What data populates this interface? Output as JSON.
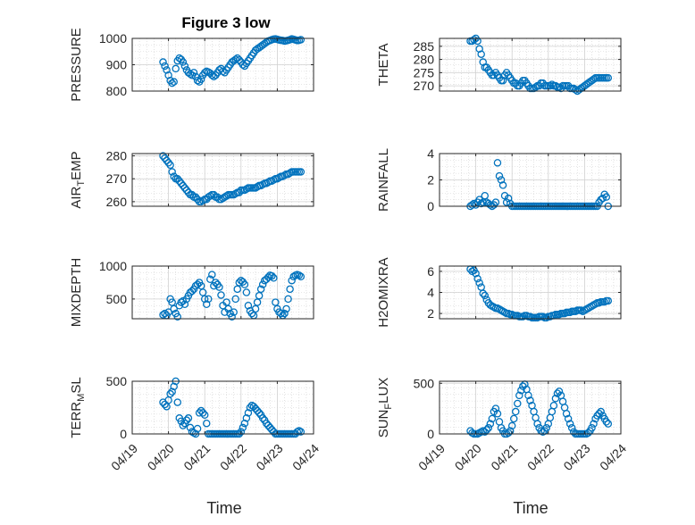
{
  "figure": {
    "title": "Figure 3 low",
    "x_label": "Time",
    "x_tick_labels": [
      "04/19",
      "04/20",
      "04/21",
      "04/22",
      "04/23",
      "04/24"
    ],
    "marker_color": "#0072BD",
    "grid_color": "#d0d0d0"
  },
  "chart_data": [
    {
      "type": "scatter",
      "ylabel": "PRESSURE",
      "ylim": [
        800,
        1000
      ],
      "yticks": [
        800,
        900,
        1000
      ],
      "x_range": [
        0,
        5
      ],
      "grid": true,
      "x": [
        0.85,
        0.9,
        0.95,
        1.0,
        1.05,
        1.1,
        1.15,
        1.2,
        1.25,
        1.3,
        1.35,
        1.4,
        1.45,
        1.5,
        1.55,
        1.6,
        1.65,
        1.7,
        1.75,
        1.8,
        1.85,
        1.9,
        1.95,
        2.0,
        2.05,
        2.1,
        2.15,
        2.2,
        2.25,
        2.3,
        2.35,
        2.4,
        2.45,
        2.5,
        2.55,
        2.6,
        2.65,
        2.7,
        2.75,
        2.8,
        2.85,
        2.9,
        2.95,
        3.0,
        3.05,
        3.1,
        3.15,
        3.2,
        3.25,
        3.3,
        3.35,
        3.4,
        3.45,
        3.5,
        3.55,
        3.6,
        3.65,
        3.7,
        3.75,
        3.8,
        3.85,
        3.9,
        3.95,
        4.0,
        4.05,
        4.1,
        4.15,
        4.2,
        4.25,
        4.3,
        4.35,
        4.4,
        4.45,
        4.5,
        4.55,
        4.6,
        4.65
      ],
      "y": [
        910,
        895,
        880,
        860,
        840,
        830,
        835,
        885,
        915,
        925,
        920,
        910,
        895,
        880,
        870,
        865,
        860,
        870,
        855,
        840,
        835,
        845,
        860,
        870,
        875,
        872,
        868,
        860,
        855,
        860,
        870,
        880,
        885,
        875,
        870,
        880,
        890,
        900,
        910,
        915,
        920,
        925,
        918,
        910,
        900,
        895,
        905,
        915,
        925,
        935,
        945,
        955,
        960,
        965,
        970,
        975,
        980,
        985,
        990,
        992,
        995,
        997,
        998,
        996,
        994,
        993,
        992,
        990,
        991,
        993,
        995,
        998,
        996,
        994,
        992,
        993,
        995
      ]
    },
    {
      "type": "scatter",
      "ylabel": "THETA",
      "ylim": [
        268,
        288
      ],
      "yticks": [
        270,
        275,
        280,
        285
      ],
      "x_range": [
        0,
        5
      ],
      "grid": true,
      "x": [
        0.85,
        0.9,
        0.95,
        1.0,
        1.05,
        1.1,
        1.15,
        1.2,
        1.25,
        1.3,
        1.35,
        1.4,
        1.45,
        1.5,
        1.55,
        1.6,
        1.65,
        1.7,
        1.75,
        1.8,
        1.85,
        1.9,
        1.95,
        2.0,
        2.05,
        2.1,
        2.15,
        2.2,
        2.25,
        2.3,
        2.35,
        2.4,
        2.45,
        2.5,
        2.55,
        2.6,
        2.65,
        2.7,
        2.75,
        2.8,
        2.85,
        2.9,
        2.95,
        3.0,
        3.05,
        3.1,
        3.15,
        3.2,
        3.25,
        3.3,
        3.35,
        3.4,
        3.45,
        3.5,
        3.55,
        3.6,
        3.65,
        3.7,
        3.75,
        3.8,
        3.85,
        3.9,
        3.95,
        4.0,
        4.05,
        4.1,
        4.15,
        4.2,
        4.25,
        4.3,
        4.35,
        4.4,
        4.45,
        4.5,
        4.55,
        4.6,
        4.65
      ],
      "y": [
        287,
        287,
        287.5,
        288,
        287,
        284,
        282,
        279,
        277,
        277,
        276,
        275,
        274,
        274,
        275,
        274,
        273,
        272,
        272,
        274,
        275,
        274,
        273,
        272,
        271,
        271,
        270,
        270,
        271,
        272,
        272,
        271,
        270,
        269,
        269,
        269,
        269.5,
        270,
        270,
        271,
        271,
        270,
        270,
        270,
        270,
        270.5,
        270,
        270,
        269.5,
        269.5,
        269,
        270,
        270,
        270,
        270,
        269,
        269,
        269,
        268.5,
        268,
        268.5,
        269,
        269.5,
        270,
        270.5,
        271,
        271.5,
        272,
        272.5,
        273,
        273,
        273,
        273,
        273,
        273,
        273,
        273
      ]
    },
    {
      "type": "scatter",
      "ylabel": "AIR_TEMP",
      "ylim": [
        258,
        281
      ],
      "yticks": [
        260,
        270,
        280
      ],
      "x_range": [
        0,
        5
      ],
      "grid": true,
      "x": [
        0.85,
        0.9,
        0.95,
        1.0,
        1.05,
        1.1,
        1.15,
        1.2,
        1.25,
        1.3,
        1.35,
        1.4,
        1.45,
        1.5,
        1.55,
        1.6,
        1.65,
        1.7,
        1.75,
        1.8,
        1.85,
        1.9,
        1.95,
        2.0,
        2.05,
        2.1,
        2.15,
        2.2,
        2.25,
        2.3,
        2.35,
        2.4,
        2.45,
        2.5,
        2.55,
        2.6,
        2.65,
        2.7,
        2.75,
        2.8,
        2.85,
        2.9,
        2.95,
        3.0,
        3.05,
        3.1,
        3.15,
        3.2,
        3.25,
        3.3,
        3.35,
        3.4,
        3.45,
        3.5,
        3.55,
        3.6,
        3.65,
        3.7,
        3.75,
        3.8,
        3.85,
        3.9,
        3.95,
        4.0,
        4.05,
        4.1,
        4.15,
        4.2,
        4.25,
        4.3,
        4.35,
        4.4,
        4.45,
        4.5,
        4.55,
        4.6,
        4.65
      ],
      "y": [
        280,
        279,
        278,
        277,
        276,
        273,
        271,
        270,
        270,
        269,
        268,
        267,
        266,
        265,
        264,
        263,
        263,
        262,
        262,
        261,
        260,
        260,
        260.5,
        261,
        261,
        262,
        262.5,
        263,
        263,
        262,
        262,
        261,
        261,
        261.5,
        262,
        262.5,
        263,
        263,
        263,
        263,
        263.5,
        264,
        264,
        265,
        265,
        265,
        265.5,
        266,
        266,
        266,
        266,
        266,
        266.5,
        267,
        267,
        267.5,
        268,
        268,
        268.5,
        269,
        269,
        269.5,
        270,
        270,
        270.5,
        271,
        271,
        271.5,
        272,
        272,
        272.5,
        273,
        273,
        273,
        273,
        273,
        273
      ]
    },
    {
      "type": "scatter",
      "ylabel": "RAINFALL",
      "ylim": [
        0,
        4
      ],
      "yticks": [
        0,
        2,
        4
      ],
      "x_range": [
        0,
        5
      ],
      "grid": true,
      "x": [
        0.85,
        0.9,
        0.95,
        1.0,
        1.05,
        1.1,
        1.15,
        1.2,
        1.25,
        1.3,
        1.35,
        1.4,
        1.45,
        1.5,
        1.55,
        1.6,
        1.65,
        1.7,
        1.75,
        1.8,
        1.85,
        1.9,
        1.95,
        2.0,
        2.05,
        2.1,
        2.15,
        2.2,
        2.25,
        2.3,
        2.35,
        2.4,
        2.45,
        2.5,
        2.55,
        2.6,
        2.65,
        2.7,
        2.75,
        2.8,
        2.85,
        2.9,
        2.95,
        3.0,
        3.05,
        3.1,
        3.15,
        3.2,
        3.25,
        3.3,
        3.35,
        3.4,
        3.45,
        3.5,
        3.55,
        3.6,
        3.65,
        3.7,
        3.75,
        3.8,
        3.85,
        3.9,
        3.95,
        4.0,
        4.05,
        4.1,
        4.15,
        4.2,
        4.25,
        4.3,
        4.35,
        4.4,
        4.45,
        4.5,
        4.55,
        4.6,
        4.65
      ],
      "y": [
        0,
        0.1,
        0.2,
        0.1,
        0.3,
        0.5,
        0.2,
        0.3,
        0.8,
        0.3,
        0.2,
        0.1,
        0,
        0.1,
        0.3,
        3.3,
        2.3,
        2,
        1.6,
        0.8,
        0.3,
        0.6,
        0.2,
        0,
        0,
        0,
        0,
        0,
        0,
        0,
        0,
        0,
        0,
        0,
        0,
        0,
        0,
        0,
        0,
        0,
        0,
        0,
        0,
        0,
        0,
        0,
        0,
        0,
        0,
        0,
        0,
        0,
        0,
        0,
        0,
        0,
        0,
        0,
        0,
        0,
        0,
        0,
        0,
        0,
        0,
        0,
        0,
        0,
        0,
        0,
        0,
        0.3,
        0.5,
        0.6,
        0.9,
        0.7,
        0
      ]
    },
    {
      "type": "scatter",
      "ylabel": "MIXDEPTH",
      "ylim": [
        200,
        1000
      ],
      "yticks": [
        500,
        1000
      ],
      "x_range": [
        0,
        5
      ],
      "grid": true,
      "x": [
        0.85,
        0.9,
        0.95,
        1.0,
        1.05,
        1.1,
        1.15,
        1.2,
        1.25,
        1.3,
        1.35,
        1.4,
        1.45,
        1.5,
        1.55,
        1.6,
        1.65,
        1.7,
        1.75,
        1.8,
        1.85,
        1.9,
        1.95,
        2.0,
        2.05,
        2.1,
        2.15,
        2.2,
        2.25,
        2.3,
        2.35,
        2.4,
        2.45,
        2.5,
        2.55,
        2.6,
        2.65,
        2.7,
        2.75,
        2.8,
        2.85,
        2.9,
        2.95,
        3.0,
        3.05,
        3.1,
        3.15,
        3.2,
        3.25,
        3.3,
        3.35,
        3.4,
        3.45,
        3.5,
        3.55,
        3.6,
        3.65,
        3.7,
        3.75,
        3.8,
        3.85,
        3.9,
        3.95,
        4.0,
        4.05,
        4.1,
        4.15,
        4.2,
        4.25,
        4.3,
        4.35,
        4.4,
        4.45,
        4.5,
        4.55,
        4.6,
        4.65
      ],
      "y": [
        260,
        280,
        250,
        300,
        500,
        450,
        350,
        280,
        230,
        400,
        450,
        470,
        420,
        500,
        550,
        600,
        620,
        650,
        700,
        720,
        750,
        700,
        600,
        500,
        420,
        500,
        800,
        870,
        700,
        750,
        720,
        680,
        560,
        400,
        300,
        450,
        350,
        280,
        230,
        300,
        500,
        650,
        750,
        780,
        760,
        720,
        600,
        400,
        320,
        280,
        250,
        350,
        450,
        550,
        650,
        720,
        780,
        800,
        830,
        860,
        850,
        820,
        450,
        350,
        300,
        280,
        250,
        280,
        350,
        500,
        650,
        780,
        840,
        860,
        870,
        860,
        840
      ]
    },
    {
      "type": "scatter",
      "ylabel": "H2OMIXRA",
      "ylim": [
        1.5,
        6.5
      ],
      "yticks": [
        2,
        4,
        6
      ],
      "x_range": [
        0,
        5
      ],
      "grid": true,
      "x": [
        0.85,
        0.9,
        0.95,
        1.0,
        1.05,
        1.1,
        1.15,
        1.2,
        1.25,
        1.3,
        1.35,
        1.4,
        1.45,
        1.5,
        1.55,
        1.6,
        1.65,
        1.7,
        1.75,
        1.8,
        1.85,
        1.9,
        1.95,
        2.0,
        2.05,
        2.1,
        2.15,
        2.2,
        2.25,
        2.3,
        2.35,
        2.4,
        2.45,
        2.5,
        2.55,
        2.6,
        2.65,
        2.7,
        2.75,
        2.8,
        2.85,
        2.9,
        2.95,
        3.0,
        3.05,
        3.1,
        3.15,
        3.2,
        3.25,
        3.3,
        3.35,
        3.4,
        3.45,
        3.5,
        3.55,
        3.6,
        3.65,
        3.7,
        3.75,
        3.8,
        3.85,
        3.9,
        3.95,
        4.0,
        4.05,
        4.1,
        4.15,
        4.2,
        4.25,
        4.3,
        4.35,
        4.4,
        4.45,
        4.5,
        4.55,
        4.6,
        4.65
      ],
      "y": [
        6.2,
        6.0,
        6.1,
        5.8,
        5.3,
        4.9,
        4.5,
        3.9,
        3.7,
        3.3,
        3.0,
        2.8,
        2.7,
        2.6,
        2.5,
        2.5,
        2.4,
        2.3,
        2.2,
        2.1,
        2.0,
        2.0,
        1.9,
        1.9,
        1.8,
        1.8,
        1.8,
        1.7,
        1.7,
        1.7,
        1.8,
        1.8,
        1.7,
        1.7,
        1.6,
        1.6,
        1.6,
        1.6,
        1.7,
        1.7,
        1.7,
        1.6,
        1.6,
        1.7,
        1.7,
        1.8,
        1.8,
        1.9,
        1.9,
        1.9,
        2.0,
        2.0,
        2.0,
        2.1,
        2.1,
        2.1,
        2.2,
        2.2,
        2.2,
        2.3,
        2.3,
        2.3,
        2.2,
        2.3,
        2.4,
        2.5,
        2.6,
        2.7,
        2.8,
        2.9,
        3.0,
        3.0,
        3.1,
        3.1,
        3.1,
        3.2,
        3.2
      ]
    },
    {
      "type": "scatter",
      "ylabel": "TERR_MSL",
      "ylim": [
        0,
        500
      ],
      "yticks": [
        0,
        500
      ],
      "x_range": [
        0,
        5
      ],
      "grid": true,
      "x": [
        0.85,
        0.9,
        0.95,
        1.0,
        1.05,
        1.1,
        1.15,
        1.2,
        1.25,
        1.3,
        1.35,
        1.4,
        1.45,
        1.5,
        1.55,
        1.6,
        1.65,
        1.7,
        1.75,
        1.8,
        1.85,
        1.9,
        1.95,
        2.0,
        2.05,
        2.1,
        2.15,
        2.2,
        2.25,
        2.3,
        2.35,
        2.4,
        2.45,
        2.5,
        2.55,
        2.6,
        2.65,
        2.7,
        2.75,
        2.8,
        2.85,
        2.9,
        2.95,
        3.0,
        3.05,
        3.1,
        3.15,
        3.2,
        3.25,
        3.3,
        3.35,
        3.4,
        3.45,
        3.5,
        3.55,
        3.6,
        3.65,
        3.7,
        3.75,
        3.8,
        3.85,
        3.9,
        3.95,
        4.0,
        4.05,
        4.1,
        4.15,
        4.2,
        4.25,
        4.3,
        4.35,
        4.4,
        4.45,
        4.5,
        4.55,
        4.6,
        4.65
      ],
      "y": [
        300,
        280,
        260,
        320,
        380,
        400,
        450,
        500,
        300,
        150,
        120,
        80,
        100,
        130,
        150,
        60,
        20,
        10,
        0,
        50,
        200,
        220,
        200,
        180,
        100,
        0,
        0,
        0,
        0,
        0,
        0,
        0,
        0,
        0,
        0,
        0,
        0,
        0,
        0,
        0,
        0,
        0,
        0,
        20,
        60,
        100,
        150,
        200,
        250,
        270,
        260,
        240,
        220,
        200,
        180,
        150,
        130,
        100,
        80,
        60,
        40,
        20,
        0,
        0,
        0,
        0,
        0,
        0,
        0,
        0,
        0,
        0,
        0,
        0,
        20,
        30,
        20
      ]
    },
    {
      "type": "scatter",
      "ylabel": "SUN_FLUX",
      "ylim": [
        0,
        520
      ],
      "yticks": [
        0,
        500
      ],
      "x_range": [
        0,
        5
      ],
      "grid": true,
      "x": [
        0.85,
        0.9,
        0.95,
        1.0,
        1.05,
        1.1,
        1.15,
        1.2,
        1.25,
        1.3,
        1.35,
        1.4,
        1.45,
        1.5,
        1.55,
        1.6,
        1.65,
        1.7,
        1.75,
        1.8,
        1.85,
        1.9,
        1.95,
        2.0,
        2.05,
        2.1,
        2.15,
        2.2,
        2.25,
        2.3,
        2.35,
        2.4,
        2.45,
        2.5,
        2.55,
        2.6,
        2.65,
        2.7,
        2.75,
        2.8,
        2.85,
        2.9,
        2.95,
        3.0,
        3.05,
        3.1,
        3.15,
        3.2,
        3.25,
        3.3,
        3.35,
        3.4,
        3.45,
        3.5,
        3.55,
        3.6,
        3.65,
        3.7,
        3.75,
        3.8,
        3.85,
        3.9,
        3.95,
        4.0,
        4.05,
        4.1,
        4.15,
        4.2,
        4.25,
        4.3,
        4.35,
        4.4,
        4.45,
        4.5,
        4.55,
        4.6,
        4.65
      ],
      "y": [
        30,
        10,
        0,
        0,
        0,
        10,
        20,
        30,
        20,
        40,
        60,
        100,
        150,
        220,
        250,
        200,
        120,
        60,
        30,
        0,
        0,
        10,
        30,
        80,
        150,
        220,
        300,
        380,
        430,
        470,
        490,
        440,
        380,
        330,
        280,
        220,
        160,
        100,
        60,
        30,
        20,
        30,
        60,
        100,
        160,
        220,
        280,
        350,
        400,
        420,
        380,
        320,
        260,
        200,
        150,
        100,
        60,
        20,
        0,
        0,
        0,
        0,
        0,
        0,
        0,
        10,
        30,
        60,
        100,
        150,
        180,
        200,
        220,
        180,
        150,
        120,
        100
      ]
    }
  ]
}
